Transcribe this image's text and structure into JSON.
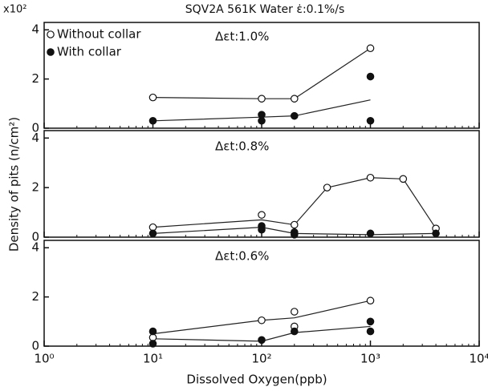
{
  "chart_data": {
    "type": "scatter",
    "title": "SQV2A 561K Water ε̇:0.1%/s",
    "y_multiplier": "x10²",
    "y_label": "Density of pits (n/cm²)",
    "x_label": "Dissolved Oxygen(ppb)",
    "log_x": true,
    "xlim": [
      1,
      10000
    ],
    "xticks": [
      {
        "value": 1,
        "label": "10⁰"
      },
      {
        "value": 10,
        "label": "10¹"
      },
      {
        "value": 100,
        "label": "10²"
      },
      {
        "value": 1000,
        "label": "10³"
      },
      {
        "value": 10000,
        "label": "10⁴"
      }
    ],
    "legend_names": [
      "Without collar",
      "With collar"
    ],
    "panels": [
      {
        "annotation": "Δεt:1.0%",
        "ylim": [
          0,
          4.3
        ],
        "yticks": [
          0,
          2,
          4
        ],
        "series": [
          {
            "marker": "open",
            "x": [
              10,
              100,
              200,
              1000
            ],
            "values": [
              1.25,
              1.2,
              1.2,
              3.25
            ]
          },
          {
            "marker": "filled",
            "x": [
              10,
              100,
              100,
              200,
              1000,
              1000
            ],
            "values": [
              0.3,
              0.55,
              0.3,
              0.5,
              2.1,
              0.3
            ]
          }
        ],
        "lines": [
          {
            "x": [
              10,
              100,
              200,
              1000
            ],
            "values": [
              1.25,
              1.2,
              1.2,
              3.25
            ]
          },
          {
            "x": [
              10,
              100,
              200,
              1000
            ],
            "values": [
              0.3,
              0.45,
              0.5,
              1.15
            ]
          }
        ]
      },
      {
        "annotation": "Δεt:0.8%",
        "ylim": [
          0,
          4.3
        ],
        "yticks": [
          0,
          2,
          4
        ],
        "series": [
          {
            "marker": "open",
            "x": [
              10,
              100,
              200,
              400,
              1000,
              2000,
              4000
            ],
            "values": [
              0.4,
              0.9,
              0.5,
              2.0,
              2.4,
              2.35,
              0.35
            ]
          },
          {
            "marker": "filled",
            "x": [
              10,
              100,
              100,
              200,
              200,
              1000,
              4000
            ],
            "values": [
              0.15,
              0.45,
              0.3,
              0.2,
              0.1,
              0.15,
              0.15
            ]
          }
        ],
        "lines": [
          {
            "x": [
              10,
              100,
              200,
              400,
              1000,
              2000,
              4000
            ],
            "values": [
              0.4,
              0.7,
              0.5,
              2.0,
              2.4,
              2.35,
              0.35
            ]
          },
          {
            "x": [
              10,
              100,
              200,
              1000,
              4000
            ],
            "values": [
              0.15,
              0.4,
              0.15,
              0.1,
              0.15
            ]
          }
        ]
      },
      {
        "annotation": "Δεt:0.6%",
        "ylim": [
          0,
          4.3
        ],
        "yticks": [
          0,
          2,
          4
        ],
        "series": [
          {
            "marker": "open",
            "x": [
              10,
              100,
              200,
              200,
              1000
            ],
            "values": [
              0.35,
              1.05,
              1.4,
              0.8,
              1.85
            ]
          },
          {
            "marker": "filled",
            "x": [
              10,
              10,
              100,
              200,
              1000,
              1000
            ],
            "values": [
              0.6,
              0.1,
              0.25,
              0.6,
              1.0,
              0.6
            ]
          }
        ],
        "lines": [
          {
            "x": [
              10,
              100,
              200,
              1000
            ],
            "values": [
              0.5,
              1.05,
              1.15,
              1.85
            ]
          },
          {
            "x": [
              10,
              100,
              200,
              1000
            ],
            "values": [
              0.3,
              0.2,
              0.55,
              0.8
            ]
          }
        ]
      }
    ]
  }
}
